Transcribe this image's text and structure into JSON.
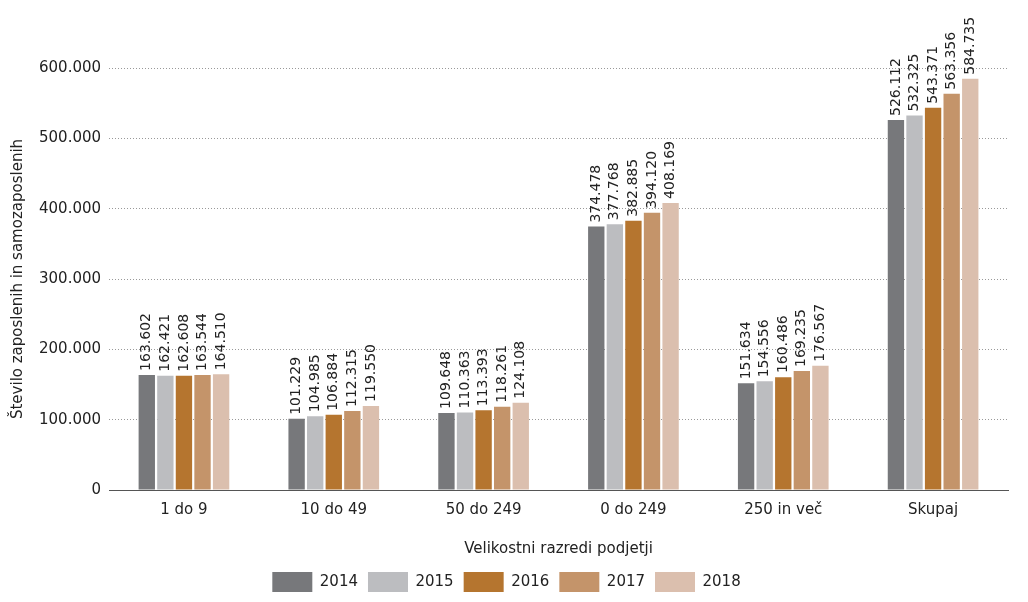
{
  "chart_data": {
    "type": "bar",
    "xlabel": "Velikostni razredi podjetji",
    "ylabel": "Število zaposlenih in samozaposlenih",
    "categories": [
      "1 do 9",
      "10 do 49",
      "50 do 249",
      "0 do 249",
      "250 in več",
      "Skupaj"
    ],
    "series": [
      {
        "name": "2014",
        "color": "#77787b",
        "values": [
          163602,
          101229,
          109648,
          374478,
          151634,
          526112
        ],
        "value_labels": [
          "163.602",
          "101.229",
          "109.648",
          "374.478",
          "151.634",
          "526.112"
        ]
      },
      {
        "name": "2015",
        "color": "#bcbdc0",
        "values": [
          162421,
          104985,
          110363,
          377768,
          154556,
          532325
        ],
        "value_labels": [
          "162.421",
          "104.985",
          "110.363",
          "377.768",
          "154.556",
          "532.325"
        ]
      },
      {
        "name": "2016",
        "color": "#b5752f",
        "values": [
          162608,
          106884,
          113393,
          382885,
          160486,
          543371
        ],
        "value_labels": [
          "162.608",
          "106.884",
          "113.393",
          "382.885",
          "160.486",
          "543.371"
        ]
      },
      {
        "name": "2017",
        "color": "#c4946a",
        "values": [
          163544,
          112315,
          118261,
          394120,
          169235,
          563356
        ],
        "value_labels": [
          "163.544",
          "112.315",
          "118.261",
          "394.120",
          "169.235",
          "563.356"
        ]
      },
      {
        "name": "2018",
        "color": "#dbbfae",
        "values": [
          164510,
          119550,
          124108,
          408169,
          176567,
          584735
        ],
        "value_labels": [
          "164.510",
          "119.550",
          "124.108",
          "408.169",
          "176.567",
          "584.735"
        ]
      }
    ],
    "ylim": [
      0,
      600000
    ],
    "yticks": [
      0,
      {
        "value": 100000,
        "label": "100.000"
      },
      {
        "value": 200000,
        "label": "200.000"
      },
      {
        "value": 300000,
        "label": "300.000"
      },
      {
        "value": 400000,
        "label": "400.000"
      },
      {
        "value": 500000,
        "label": "500.000"
      },
      {
        "value": 600000,
        "label": "600.000"
      }
    ],
    "grid": "y",
    "legend": "bottom"
  }
}
